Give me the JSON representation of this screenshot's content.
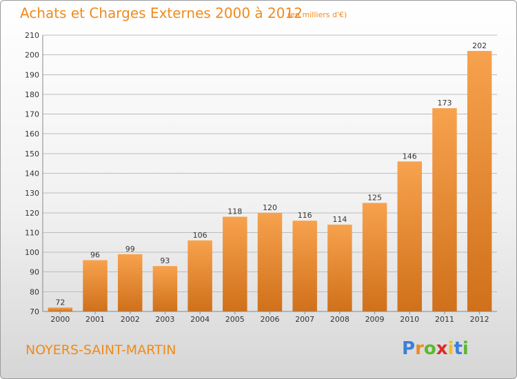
{
  "title": "Achats et Charges Externes 2000 à 2012",
  "subtitle": "(en milliers d'€)",
  "commune": "NOYERS-SAINT-MARTIN",
  "brand": {
    "letters": [
      {
        "ch": "P",
        "color": "#3b7fd9"
      },
      {
        "ch": "r",
        "color": "#f08a1c"
      },
      {
        "ch": "o",
        "color": "#5cb82e"
      },
      {
        "ch": "x",
        "color": "#e02a2a"
      },
      {
        "ch": "i",
        "color": "#f0c01c"
      },
      {
        "ch": "t",
        "color": "#3b7fd9"
      },
      {
        "ch": "i",
        "color": "#5cb82e"
      }
    ]
  },
  "colors": {
    "accent": "#f08a1c",
    "bar_top": "#f7a24e",
    "bar_bottom": "#d0701a",
    "grid": "#bbbbbb",
    "text": "#333333"
  },
  "chart_data": {
    "type": "bar",
    "categories": [
      "2000",
      "2001",
      "2002",
      "2003",
      "2004",
      "2005",
      "2006",
      "2007",
      "2008",
      "2009",
      "2010",
      "2011",
      "2012"
    ],
    "values": [
      72,
      96,
      99,
      93,
      106,
      118,
      120,
      116,
      114,
      125,
      146,
      173,
      202
    ],
    "ylim": [
      70,
      210
    ],
    "yticks": [
      70,
      80,
      90,
      100,
      110,
      120,
      130,
      140,
      150,
      160,
      170,
      180,
      190,
      200,
      210
    ],
    "grid": true,
    "xlabel": "",
    "ylabel": ""
  }
}
